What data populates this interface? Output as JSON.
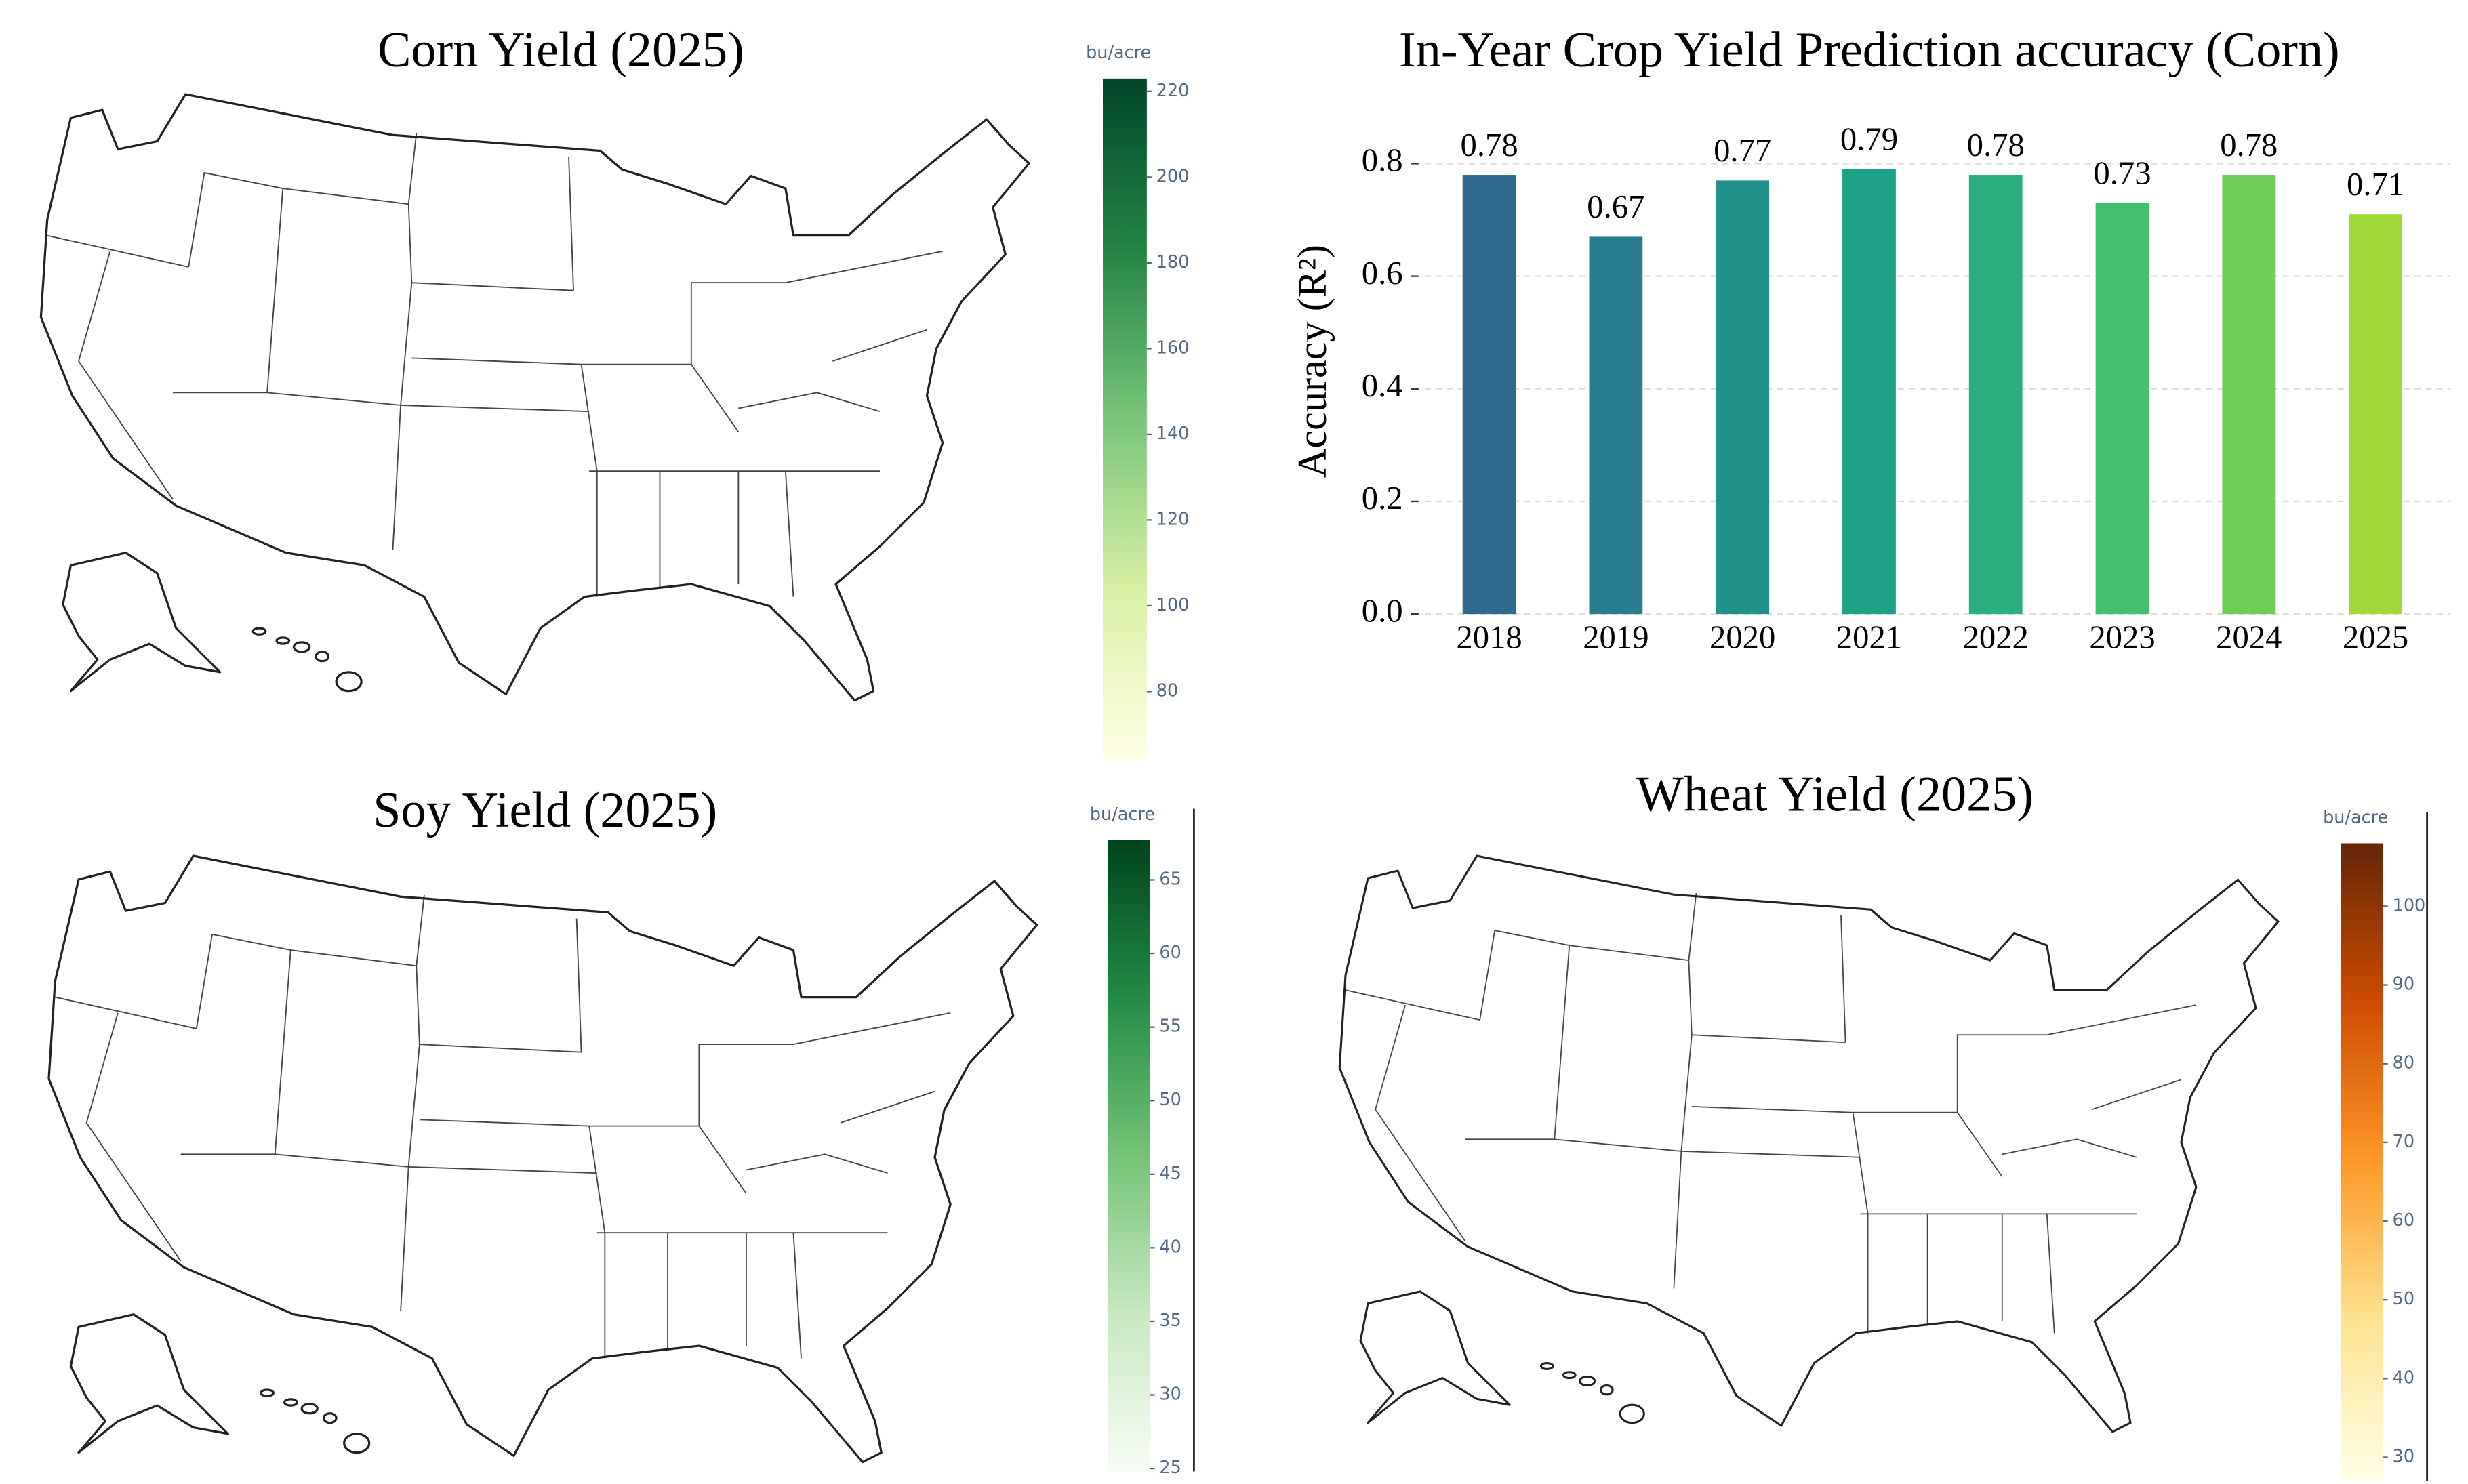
{
  "chart_data": [
    {
      "type": "choropleth",
      "title": "Corn Yield (2025)",
      "colorbar_title": "bu/acre",
      "clim": [
        64,
        223
      ],
      "cticks": [
        80,
        100,
        120,
        140,
        160,
        180,
        200,
        220
      ],
      "colorscale": [
        "#ffffe5",
        "#d9f0a3",
        "#78c679",
        "#238443",
        "#004529"
      ]
    },
    {
      "type": "bar",
      "title": "In-Year Crop Yield Prediction accuracy (Corn)",
      "y_label": "Accuracy (R²)",
      "categories": [
        "2018",
        "2019",
        "2020",
        "2021",
        "2022",
        "2023",
        "2024",
        "2025"
      ],
      "values": [
        0.78,
        0.67,
        0.77,
        0.79,
        0.78,
        0.73,
        0.78,
        0.71
      ],
      "colors": [
        "#2e6a8e",
        "#287d8e",
        "#21918c",
        "#1fa187",
        "#2ab07f",
        "#44bf70",
        "#6ece58",
        "#a0da39"
      ],
      "ylim": [
        0,
        0.82
      ],
      "yticks": [
        {
          "value": 0,
          "label": "0.0"
        },
        0.2,
        0.4,
        0.6,
        0.8
      ],
      "grid": true
    },
    {
      "type": "choropleth",
      "title": "Soy Yield (2025)",
      "colorbar_title": "bu/acre",
      "clim": [
        24.8,
        67.7
      ],
      "cticks": [
        25,
        30,
        35,
        40,
        45,
        50,
        55,
        60,
        65
      ],
      "colorscale": [
        "#f7fcf5",
        "#c7e9c0",
        "#74c476",
        "#238b45",
        "#00441b"
      ]
    },
    {
      "type": "choropleth",
      "title": "Wheat Yield (2025)",
      "colorbar_title": "bu/acre",
      "clim": [
        27,
        108
      ],
      "cticks": [
        30,
        40,
        50,
        60,
        70,
        80,
        90,
        100
      ],
      "colorscale": [
        "#ffffe5",
        "#fee391",
        "#fe9929",
        "#cc4c02",
        "#662506"
      ]
    }
  ]
}
